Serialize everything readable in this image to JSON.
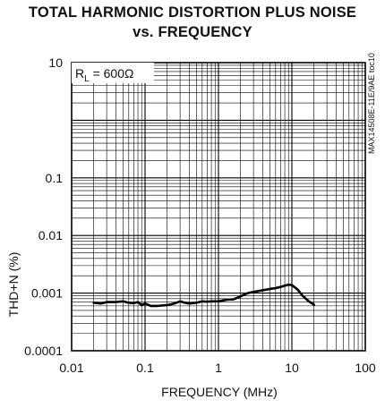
{
  "title_lines": [
    "TOTAL HARMONIC DISTORTION PLUS NOISE",
    "vs. FREQUENCY"
  ],
  "side_id": "MAX14508E-11E/9AE toc10",
  "annotation": {
    "prefix": "R",
    "subscript": "L",
    "suffix": " = 600Ω"
  },
  "chart_data": {
    "type": "line",
    "title": "TOTAL HARMONIC DISTORTION PLUS NOISE vs. FREQUENCY",
    "xlabel": "FREQUENCY (MHz)",
    "ylabel": "THD+N (%)",
    "xscale": "log",
    "yscale": "log",
    "xlim": [
      0.01,
      100
    ],
    "ylim": [
      0.0001,
      10
    ],
    "x_ticks": [
      0.01,
      0.1,
      1,
      10,
      100
    ],
    "x_tick_labels": [
      "0.01",
      "0.1",
      "1",
      "10",
      "100"
    ],
    "y_ticks": [
      10,
      0.1,
      0.01,
      0.001,
      0.0001
    ],
    "y_tick_labels": [
      "10",
      "0.1",
      "0.01",
      "0.001",
      "0.0001"
    ],
    "grid": true,
    "series": [
      {
        "color": "#000000",
        "x": [
          0.02,
          0.025,
          0.03,
          0.04,
          0.05,
          0.06,
          0.07,
          0.08,
          0.09,
          0.1,
          0.12,
          0.15,
          0.2,
          0.25,
          0.3,
          0.35,
          0.4,
          0.5,
          0.6,
          0.7,
          0.8,
          1.0,
          1.3,
          1.6,
          2.0,
          2.5,
          3.0,
          4.0,
          5.0,
          6.0,
          7.0,
          8.0,
          9.0,
          10.0,
          12.0,
          14.0,
          17.0,
          20.0
        ],
        "y": [
          0.00068,
          0.00066,
          0.0007,
          0.0007,
          0.00072,
          0.00068,
          0.00067,
          0.0007,
          0.00062,
          0.00066,
          0.0006,
          0.0006,
          0.00062,
          0.00066,
          0.00072,
          0.00068,
          0.00066,
          0.00068,
          0.00072,
          0.00071,
          0.00072,
          0.00072,
          0.00077,
          0.00078,
          0.00088,
          0.001,
          0.00105,
          0.00112,
          0.00118,
          0.00122,
          0.00128,
          0.00135,
          0.0014,
          0.00138,
          0.00115,
          0.0009,
          0.00072,
          0.00063
        ]
      }
    ]
  }
}
